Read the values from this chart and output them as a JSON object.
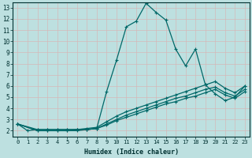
{
  "xlabel": "Humidex (Indice chaleur)",
  "xlim": [
    -0.5,
    23.5
  ],
  "ylim": [
    1.5,
    13.5
  ],
  "yticks": [
    2,
    3,
    4,
    5,
    6,
    7,
    8,
    9,
    10,
    11,
    12,
    13
  ],
  "xticks": [
    0,
    1,
    2,
    3,
    4,
    5,
    6,
    7,
    8,
    9,
    10,
    11,
    12,
    13,
    14,
    15,
    16,
    17,
    18,
    19,
    20,
    21,
    22,
    23
  ],
  "background_color": "#bde0e0",
  "grid_color_minor": "#d4b8b8",
  "line_color": "#006868",
  "curves": [
    {
      "x": [
        0,
        1,
        2,
        3,
        4,
        5,
        6,
        7,
        8,
        9,
        10,
        11,
        12,
        13,
        14,
        15,
        16,
        17,
        18,
        19,
        20,
        21,
        22,
        23
      ],
      "y": [
        2.6,
        2.0,
        2.1,
        2.1,
        2.1,
        2.1,
        2.1,
        2.1,
        2.2,
        5.5,
        8.3,
        11.3,
        11.8,
        13.4,
        12.6,
        11.9,
        9.3,
        7.8,
        9.3,
        6.1,
        5.3,
        4.7,
        5.0,
        6.0
      ]
    },
    {
      "x": [
        0,
        2,
        3,
        4,
        5,
        6,
        7,
        8,
        9,
        10,
        11,
        12,
        13,
        14,
        15,
        16,
        17,
        18,
        19,
        20,
        21,
        22,
        23
      ],
      "y": [
        2.6,
        2.1,
        2.1,
        2.1,
        2.1,
        2.1,
        2.2,
        2.3,
        2.8,
        3.3,
        3.7,
        4.0,
        4.3,
        4.6,
        4.9,
        5.2,
        5.5,
        5.8,
        6.1,
        6.4,
        5.8,
        5.4,
        6.0
      ]
    },
    {
      "x": [
        0,
        2,
        3,
        4,
        5,
        6,
        7,
        8,
        9,
        10,
        11,
        12,
        13,
        14,
        15,
        16,
        17,
        18,
        19,
        20,
        21,
        22,
        23
      ],
      "y": [
        2.6,
        2.0,
        2.0,
        2.0,
        2.0,
        2.1,
        2.1,
        2.2,
        2.6,
        3.0,
        3.4,
        3.7,
        4.0,
        4.3,
        4.6,
        4.9,
        5.1,
        5.4,
        5.7,
        5.9,
        5.4,
        5.1,
        5.7
      ]
    },
    {
      "x": [
        0,
        2,
        3,
        4,
        5,
        6,
        7,
        8,
        9,
        10,
        11,
        12,
        13,
        14,
        15,
        16,
        17,
        18,
        19,
        20,
        21,
        22,
        23
      ],
      "y": [
        2.6,
        2.0,
        2.0,
        2.0,
        2.0,
        2.0,
        2.1,
        2.2,
        2.5,
        2.9,
        3.2,
        3.5,
        3.8,
        4.1,
        4.4,
        4.6,
        4.9,
        5.1,
        5.4,
        5.7,
        5.2,
        4.9,
        5.5
      ]
    }
  ]
}
